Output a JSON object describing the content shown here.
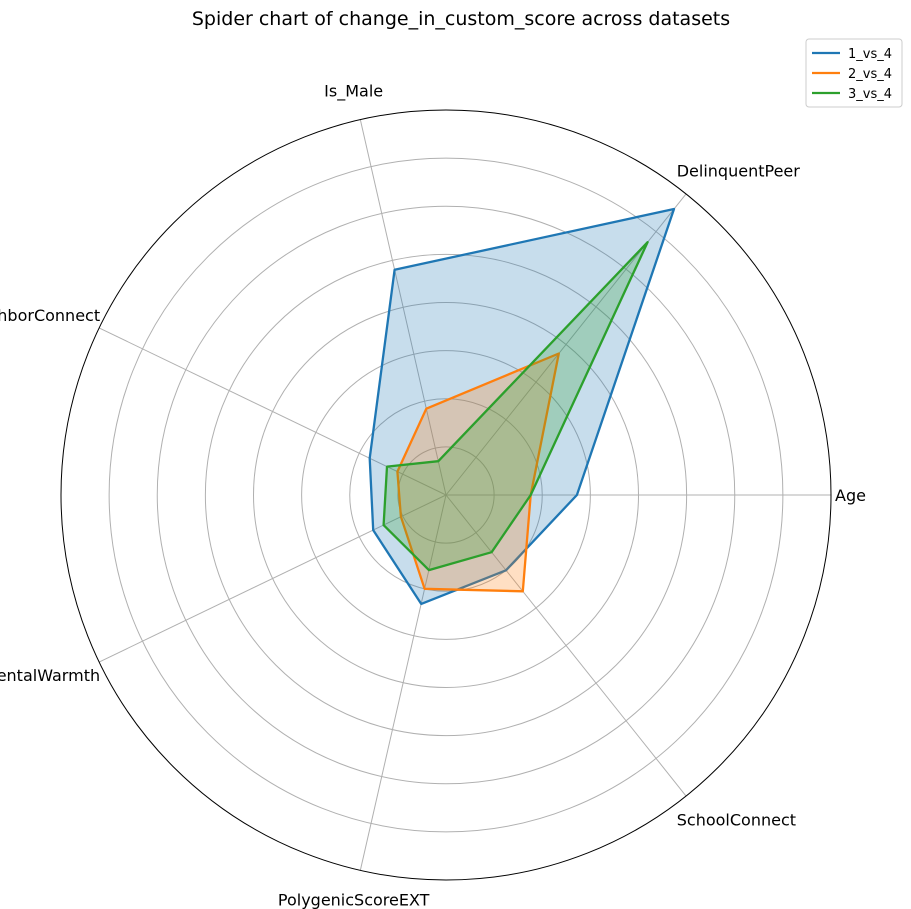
{
  "chart_data": {
    "type": "radar",
    "title": "Spider chart of change_in_custom_score across datasets",
    "axes": [
      "Age",
      "DelinquentPeer",
      "Is_Male",
      "NeighborConnect",
      "ParentalWarmth",
      "PolygenicScoreEXT",
      "SchoolConnect"
    ],
    "r_range": [
      0,
      1
    ],
    "ring_count": 8,
    "grid": true,
    "legend_position": "top-right",
    "series": [
      {
        "name": "1_vs_4",
        "color": "#1f77b4",
        "fill": true,
        "values": [
          0.34,
          0.95,
          0.6,
          0.22,
          0.21,
          0.29,
          0.25
        ]
      },
      {
        "name": "2_vs_4",
        "color": "#ff7f0e",
        "fill": true,
        "values": [
          0.22,
          0.47,
          0.23,
          0.14,
          0.13,
          0.25,
          0.32
        ]
      },
      {
        "name": "3_vs_4",
        "color": "#2ca02c",
        "fill": true,
        "values": [
          0.22,
          0.84,
          0.09,
          0.17,
          0.18,
          0.2,
          0.19
        ]
      }
    ]
  }
}
